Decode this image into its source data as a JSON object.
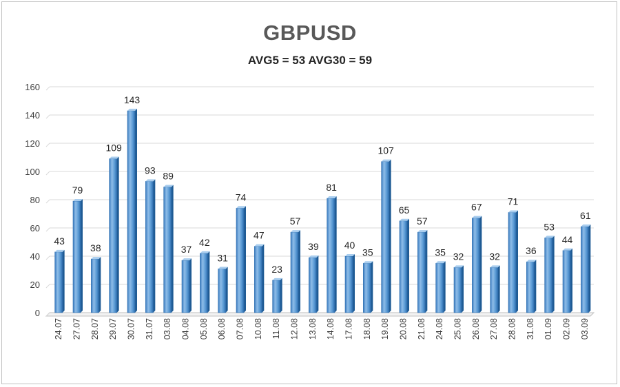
{
  "chart_data": {
    "type": "bar",
    "title": "GBPUSD",
    "subtitle": "AVG5 = 53 AVG30 = 59",
    "xlabel": "",
    "ylabel": "",
    "ylim": [
      0,
      160
    ],
    "yticks": [
      0,
      20,
      40,
      60,
      80,
      100,
      120,
      140,
      160
    ],
    "grid": true,
    "legend": "none",
    "colors": {
      "bar_top": "#a9cdee",
      "bar_mid": "#5b9bd5",
      "bar_dark": "#2f6eae",
      "bar_side": "#1f5b94",
      "grid": "#d9d9d9",
      "axis": "#bfbfbf"
    },
    "categories": [
      "24.07",
      "27.07",
      "28.07",
      "29.07",
      "30.07",
      "31.07",
      "03.08",
      "04.08",
      "05.08",
      "06.08",
      "07.08",
      "10.08",
      "11.08",
      "12.08",
      "13.08",
      "14.08",
      "17.08",
      "18.08",
      "19.08",
      "20.08",
      "21.08",
      "24.08",
      "25.08",
      "26.08",
      "27.08",
      "28.08",
      "31.08",
      "01.09",
      "02.09",
      "03.09"
    ],
    "values": [
      43,
      79,
      38,
      109,
      143,
      93,
      89,
      37,
      42,
      31,
      74,
      47,
      23,
      57,
      39,
      81,
      40,
      35,
      107,
      65,
      57,
      35,
      32,
      67,
      32,
      71,
      36,
      53,
      44,
      61
    ]
  }
}
